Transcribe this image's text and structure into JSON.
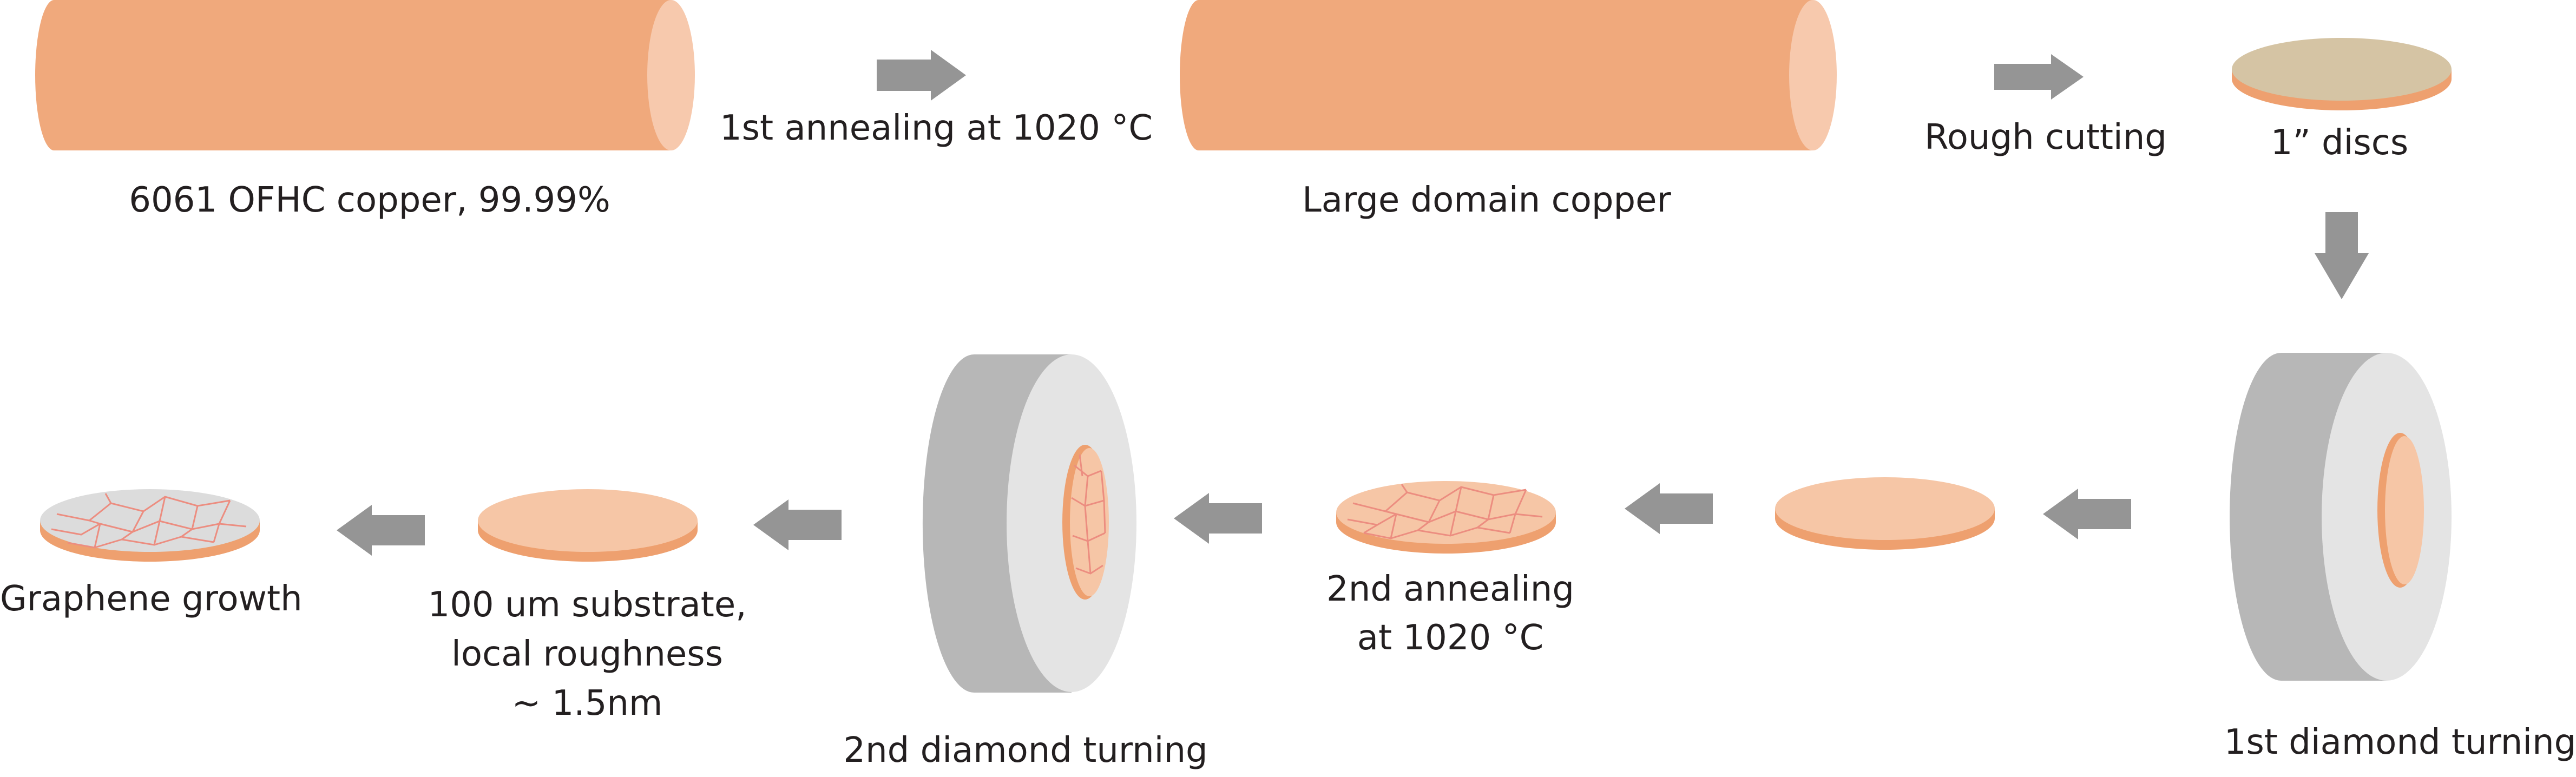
{
  "colors": {
    "copper": "#f0a97c",
    "copper_end": "#f7c9ad",
    "disc_top": "#f6c6a6",
    "disc_edge": "#eea06f",
    "raw_disc_top": "#d5c4a4",
    "grain_line": "#ec8d80",
    "graphene": "#dcdcdc",
    "chuck_dark": "#b7b7b7",
    "chuck_light": "#e4e4e4",
    "arrow": "#959595"
  },
  "steps": {
    "raw_copper": "6061 OFHC copper, 99.99%",
    "first_annealing": "1st annealing at 1020 °C",
    "large_domain": "Large domain copper",
    "rough_cutting": "Rough cutting",
    "discs": "1” discs",
    "first_diamond_turning": "1st diamond turning",
    "second_annealing_line1": "2nd annealing",
    "second_annealing_line2": "at 1020 °C",
    "second_diamond_turning": "2nd diamond turning",
    "substrate_line1": "100 um substrate,",
    "substrate_line2": "local roughness",
    "substrate_line3": "~ 1.5nm",
    "graphene_growth": "Graphene growth"
  },
  "icons": [
    "copper-rod-icon",
    "copper-disc-icon",
    "diamond-turning-chuck-icon",
    "graphene-disc-icon",
    "process-arrow-icon"
  ]
}
